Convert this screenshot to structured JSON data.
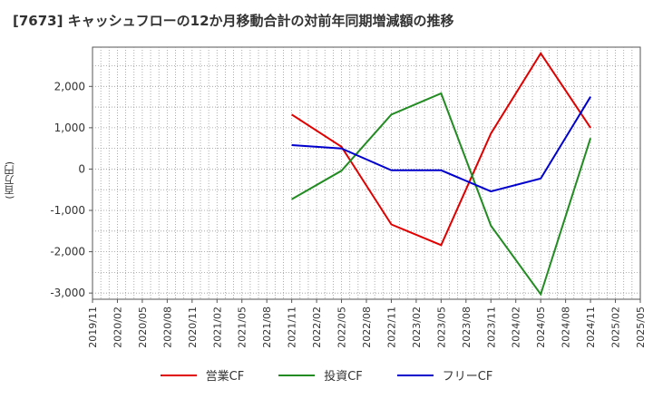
{
  "chart_data": {
    "type": "line",
    "title": "[7673]  キャッシュフローの12か月移動合計の対前年同期増減額の推移",
    "ylabel": "(百万円)",
    "xlabel": "",
    "ylim": [
      -3150,
      2950
    ],
    "yticks": [
      2000,
      1000,
      0,
      -1000,
      -2000,
      -3000
    ],
    "ytick_labels": [
      "2,000",
      "1,000",
      "0",
      "-1,000",
      "-2,000",
      "-3,000"
    ],
    "x_categories": [
      "2019/11",
      "2020/02",
      "2020/05",
      "2020/08",
      "2020/11",
      "2021/02",
      "2021/05",
      "2021/08",
      "2021/11",
      "2022/02",
      "2022/05",
      "2022/08",
      "2022/11",
      "2023/02",
      "2023/05",
      "2023/08",
      "2023/11",
      "2024/02",
      "2024/05",
      "2024/08",
      "2024/11",
      "2025/02",
      "2025/05"
    ],
    "grid": true,
    "legend_position": "bottom",
    "series": [
      {
        "name": "営業CF",
        "color": "#e00000",
        "x": [
          "2021/11",
          "2022/05",
          "2022/11",
          "2023/05",
          "2023/11",
          "2024/05",
          "2024/11"
        ],
        "values": [
          1320,
          540,
          -1340,
          -1840,
          860,
          2800,
          1000
        ]
      },
      {
        "name": "投資CF",
        "color": "#228b22",
        "x": [
          "2021/11",
          "2022/05",
          "2022/11",
          "2023/05",
          "2023/11",
          "2024/05",
          "2024/11"
        ],
        "values": [
          -730,
          -40,
          1320,
          1830,
          -1370,
          -3030,
          750
        ]
      },
      {
        "name": "フリーCF",
        "color": "#0000cc",
        "x": [
          "2021/11",
          "2022/05",
          "2022/11",
          "2023/05",
          "2023/11",
          "2024/05",
          "2024/11"
        ],
        "values": [
          580,
          500,
          -30,
          -30,
          -540,
          -230,
          1750
        ]
      }
    ]
  }
}
